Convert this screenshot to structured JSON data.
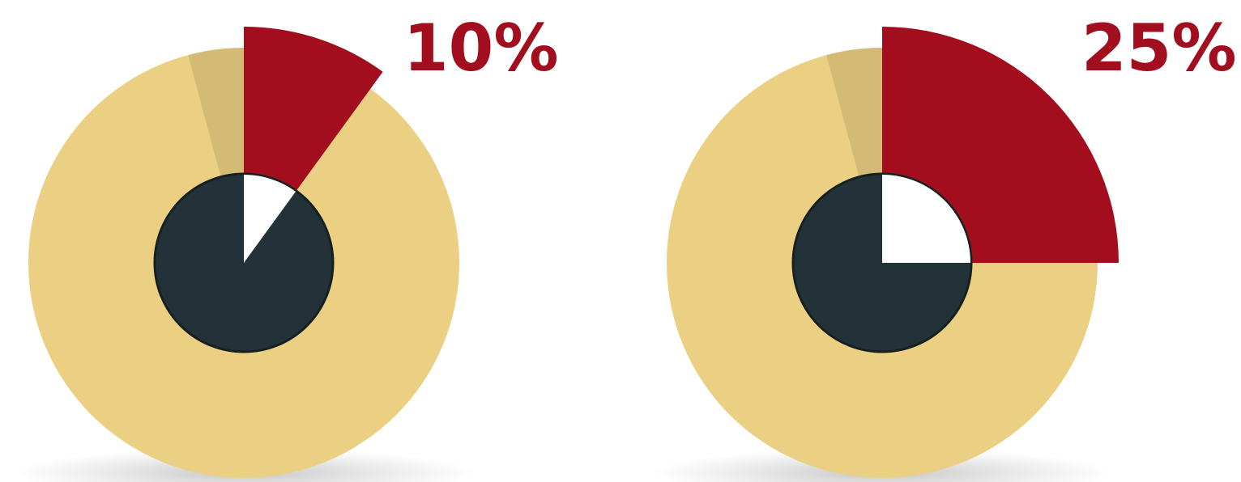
{
  "chart_data": [
    {
      "type": "pie",
      "label": "10%",
      "values": [
        10,
        90
      ],
      "colors": {
        "highlight": "#a20e1e",
        "remainder": "#ebd083",
        "hub": "#233239",
        "hub_inner_wedge": "#ffffff",
        "label": "#a20e1e"
      }
    },
    {
      "type": "pie",
      "label": "25%",
      "values": [
        25,
        75
      ],
      "colors": {
        "highlight": "#a20e1e",
        "remainder": "#ebd083",
        "hub": "#233239",
        "hub_inner_wedge": "#ffffff",
        "label": "#a20e1e"
      }
    }
  ]
}
